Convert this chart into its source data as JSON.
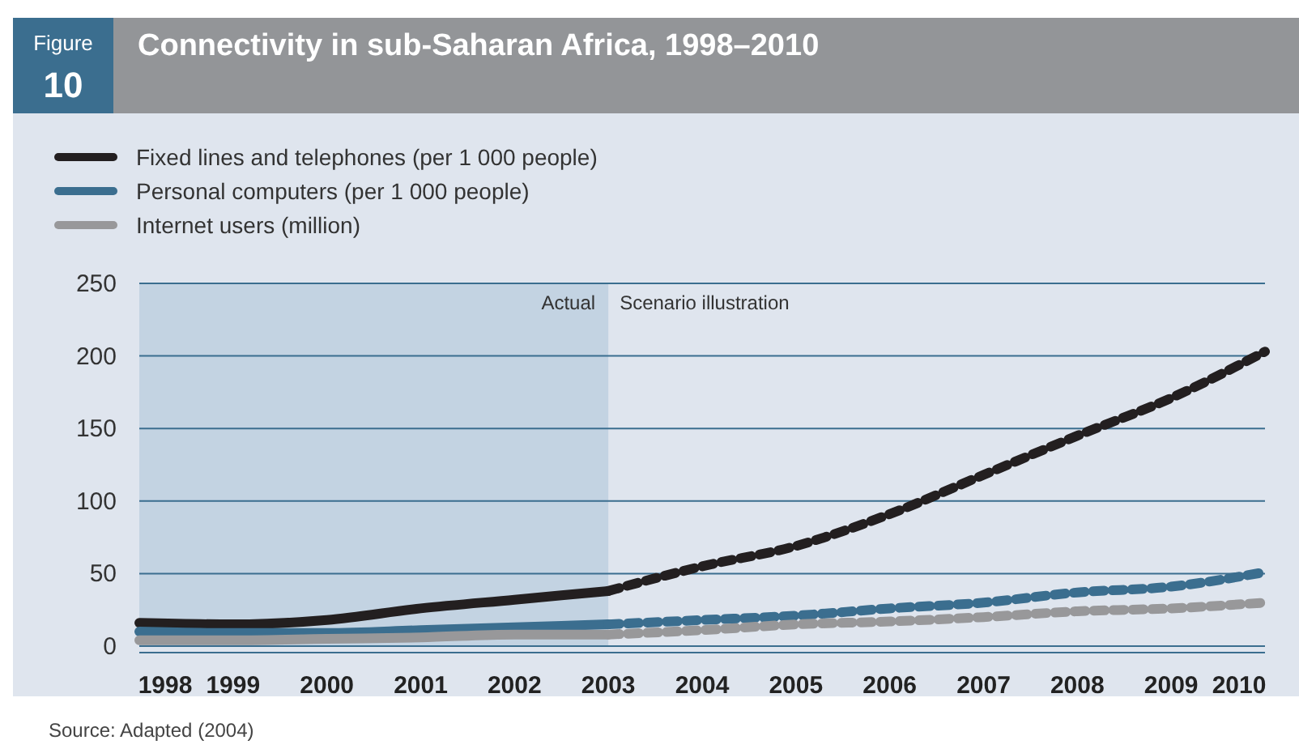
{
  "chart_data": {
    "type": "line",
    "title": "Connectivity in sub-Saharan Africa, 1998–2010",
    "annotations": [
      "Figure",
      "10",
      "Source: Adapted (2004)",
      {
        "text": "Scenario illustration",
        "x": 2003,
        "y": 250
      }
    ],
    "xlim": [
      1998,
      2010
    ],
    "xticks": [
      1998,
      1999,
      2000,
      2001,
      2002,
      2003,
      2004,
      2005,
      2006,
      2007,
      2008,
      2009,
      2010
    ],
    "ylim": [
      0,
      250
    ],
    "yticks": [
      0,
      50,
      100,
      150,
      200,
      250
    ],
    "grid": "y",
    "legend": "top left",
    "bands": [
      {
        "axis": "x",
        "from": 1998,
        "to": 2003,
        "label": "Actual",
        "color": "#c3d3e2"
      }
    ],
    "series": [
      {
        "name": "Fixed lines and telephones (per 1 000 people)",
        "color": "#231f20",
        "line_style": "solid",
        "x": [
          1998,
          1999,
          2000,
          2001,
          2002,
          2003
        ],
        "values": [
          16,
          15,
          18,
          26,
          32,
          38
        ]
      },
      {
        "name": "Personal computers (per 1 000 people)",
        "color": "#3b6e8f",
        "line_style": "solid",
        "x": [
          1998,
          1999,
          2000,
          2001,
          2002,
          2003
        ],
        "values": [
          10,
          9,
          9,
          11,
          13,
          15
        ]
      },
      {
        "name": "Internet users (million)",
        "color": "#98989a",
        "line_style": "solid",
        "x": [
          1998,
          1999,
          2000,
          2001,
          2002,
          2003
        ],
        "values": [
          4,
          4,
          5,
          6,
          8,
          8
        ]
      },
      {
        "color": "#231f20",
        "line_style": "dashed",
        "x": [
          2003,
          2004,
          2005,
          2006,
          2007,
          2008,
          2009,
          2010
        ],
        "values": [
          38,
          55,
          69,
          91,
          118,
          145,
          171,
          203
        ]
      },
      {
        "color": "#3b6e8f",
        "line_style": "dashed",
        "x": [
          2003,
          2004,
          2005,
          2006,
          2007,
          2008,
          2009,
          2010
        ],
        "values": [
          15,
          18,
          21,
          26,
          30,
          37,
          41,
          51
        ]
      },
      {
        "color": "#98989a",
        "line_style": "dashed",
        "x": [
          2003,
          2004,
          2005,
          2006,
          2007,
          2008,
          2009,
          2010
        ],
        "values": [
          8,
          11,
          15,
          17,
          20,
          24,
          26,
          30
        ]
      }
    ]
  }
}
